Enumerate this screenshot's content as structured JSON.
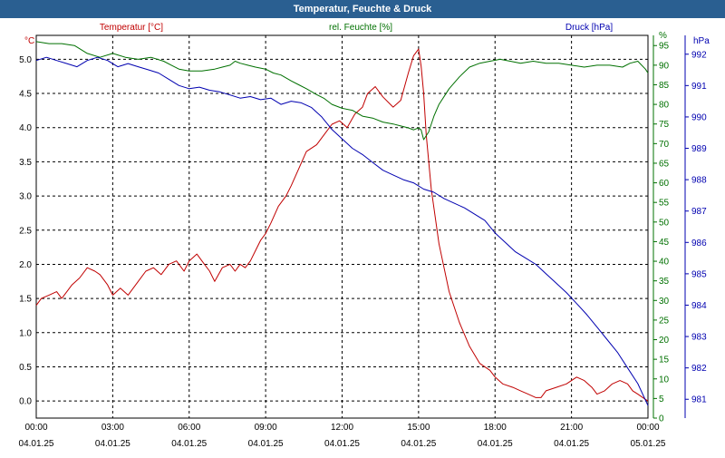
{
  "window": {
    "title": "Temperatur, Feuchte & Druck"
  },
  "colors": {
    "temp": "#c00000",
    "hum": "#007000",
    "pres": "#0000b0",
    "title_bg": "#2a5f91",
    "grid": "#000000"
  },
  "chart_data": {
    "type": "line",
    "title": "Temperatur, Feuchte & Druck",
    "grid": true,
    "x_tick_labels": [
      {
        "time": "00:00",
        "date": "04.01.25"
      },
      {
        "time": "03:00",
        "date": "04.01.25"
      },
      {
        "time": "06:00",
        "date": "04.01.25"
      },
      {
        "time": "09:00",
        "date": "04.01.25"
      },
      {
        "time": "12:00",
        "date": "04.01.25"
      },
      {
        "time": "15:00",
        "date": "04.01.25"
      },
      {
        "time": "18:00",
        "date": "04.01.25"
      },
      {
        "time": "21:00",
        "date": "04.01.25"
      },
      {
        "time": "00:00",
        "date": "05.01.25"
      }
    ],
    "x_range_hours": [
      0,
      24
    ],
    "axes": {
      "temp": {
        "label": "Temperatur [°C]",
        "unit": "°C",
        "range": [
          -0.25,
          5.35
        ],
        "ticks": [
          "0.0",
          "0.5",
          "1.0",
          "1.5",
          "2.0",
          "2.5",
          "3.0",
          "3.5",
          "4.0",
          "4.5",
          "5.0"
        ]
      },
      "hum": {
        "label": "rel. Feuchte [%]",
        "unit": "%",
        "range": [
          0,
          97.6
        ],
        "ticks": [
          "0",
          "5",
          "10",
          "15",
          "20",
          "25",
          "30",
          "35",
          "40",
          "45",
          "50",
          "55",
          "60",
          "65",
          "70",
          "75",
          "80",
          "85",
          "90",
          "95"
        ]
      },
      "pres": {
        "label": "Druck [hPa]",
        "unit": "hPa",
        "range": [
          980.4,
          992.6
        ],
        "ticks": [
          "981",
          "982",
          "983",
          "984",
          "985",
          "986",
          "987",
          "988",
          "989",
          "990",
          "991",
          "992"
        ]
      }
    },
    "series": [
      {
        "name": "Temperatur [°C]",
        "axis": "temp",
        "x": [
          0,
          0.2,
          0.5,
          0.8,
          1.0,
          1.2,
          1.4,
          1.7,
          2.0,
          2.3,
          2.5,
          2.8,
          3.0,
          3.3,
          3.6,
          4.0,
          4.3,
          4.6,
          4.9,
          5.2,
          5.5,
          5.8,
          6.0,
          6.3,
          6.5,
          6.8,
          7.0,
          7.3,
          7.6,
          7.8,
          8.0,
          8.2,
          8.4,
          8.6,
          8.8,
          9.0,
          9.2,
          9.5,
          9.8,
          10.0,
          10.3,
          10.6,
          11.0,
          11.3,
          11.6,
          11.9,
          12.2,
          12.5,
          12.8,
          13.0,
          13.3,
          13.6,
          14.0,
          14.3,
          14.6,
          14.8,
          15.0,
          15.1,
          15.2,
          15.3,
          15.5,
          15.8,
          16.2,
          16.6,
          17.0,
          17.4,
          17.8,
          18.0,
          18.3,
          18.7,
          19.0,
          19.3,
          19.6,
          19.8,
          20.0,
          20.4,
          20.8,
          21.2,
          21.5,
          21.8,
          22.0,
          22.3,
          22.6,
          22.9,
          23.2,
          23.4,
          23.6,
          23.8,
          24
        ],
        "y": [
          1.4,
          1.5,
          1.55,
          1.6,
          1.5,
          1.6,
          1.7,
          1.8,
          1.95,
          1.9,
          1.85,
          1.7,
          1.55,
          1.65,
          1.55,
          1.75,
          1.9,
          1.95,
          1.85,
          2.0,
          2.05,
          1.9,
          2.05,
          2.15,
          2.05,
          1.9,
          1.75,
          1.95,
          2.0,
          1.9,
          2.0,
          1.95,
          2.05,
          2.2,
          2.35,
          2.45,
          2.6,
          2.85,
          3.0,
          3.15,
          3.4,
          3.65,
          3.75,
          3.9,
          4.05,
          4.1,
          4.0,
          4.2,
          4.3,
          4.5,
          4.6,
          4.45,
          4.3,
          4.4,
          4.8,
          5.05,
          5.15,
          4.9,
          4.5,
          3.9,
          3.1,
          2.3,
          1.6,
          1.15,
          0.8,
          0.55,
          0.45,
          0.35,
          0.25,
          0.2,
          0.15,
          0.1,
          0.05,
          0.05,
          0.15,
          0.2,
          0.25,
          0.35,
          0.3,
          0.2,
          0.1,
          0.15,
          0.25,
          0.3,
          0.25,
          0.15,
          0.1,
          0.05,
          0.0
        ]
      },
      {
        "name": "rel. Feuchte [%]",
        "axis": "hum",
        "x": [
          0,
          0.5,
          1.0,
          1.5,
          2.0,
          2.5,
          3.0,
          3.5,
          4.0,
          4.5,
          5.0,
          5.3,
          5.6,
          6.0,
          6.5,
          7.0,
          7.3,
          7.6,
          7.8,
          8.0,
          8.3,
          8.6,
          9.0,
          9.3,
          9.6,
          10.0,
          10.3,
          10.6,
          11.0,
          11.3,
          11.6,
          12.0,
          12.4,
          12.8,
          13.2,
          13.6,
          14.0,
          14.3,
          14.6,
          14.8,
          15.0,
          15.1,
          15.2,
          15.4,
          15.6,
          15.8,
          16.2,
          16.6,
          17.0,
          17.4,
          17.8,
          18.2,
          18.6,
          19.0,
          19.5,
          20.0,
          20.5,
          21.0,
          21.5,
          22.0,
          22.5,
          23.0,
          23.3,
          23.6,
          23.9,
          24
        ],
        "y": [
          96,
          95.5,
          95.5,
          95,
          93,
          92,
          93,
          92,
          91.5,
          92,
          91,
          90,
          89,
          88.5,
          88.5,
          89,
          89.5,
          90,
          91,
          90.5,
          90,
          89.5,
          89,
          88,
          87.5,
          86,
          85,
          84,
          82.5,
          81.5,
          80,
          79,
          78.5,
          77,
          76.5,
          75.5,
          75,
          74.5,
          74,
          73.5,
          74,
          73.5,
          71,
          73,
          77,
          80,
          84,
          87,
          89.5,
          90.5,
          91,
          91.5,
          91,
          90.5,
          91,
          90.5,
          90.5,
          90,
          89.5,
          90,
          90,
          89.5,
          90.5,
          91,
          89,
          88
        ]
      },
      {
        "name": "Druck [hPa]",
        "axis": "pres",
        "x": [
          0,
          0.4,
          0.8,
          1.2,
          1.6,
          2.0,
          2.4,
          2.8,
          3.2,
          3.6,
          4.0,
          4.4,
          4.8,
          5.2,
          5.6,
          6.0,
          6.4,
          6.8,
          7.2,
          7.6,
          8.0,
          8.4,
          8.8,
          9.2,
          9.6,
          10.0,
          10.4,
          10.8,
          11.2,
          11.6,
          12.0,
          12.4,
          12.8,
          13.2,
          13.6,
          14.0,
          14.4,
          14.8,
          15.2,
          15.6,
          16.0,
          16.4,
          16.8,
          17.2,
          17.6,
          18.0,
          18.4,
          18.8,
          19.2,
          19.6,
          20.0,
          20.4,
          20.8,
          21.2,
          21.6,
          22.0,
          22.4,
          22.8,
          23.2,
          23.6,
          24
        ],
        "y": [
          991.8,
          991.9,
          991.8,
          991.7,
          991.6,
          991.8,
          991.9,
          991.8,
          991.6,
          991.7,
          991.6,
          991.5,
          991.4,
          991.2,
          991.0,
          990.9,
          990.95,
          990.85,
          990.8,
          990.7,
          990.6,
          990.65,
          990.55,
          990.6,
          990.4,
          990.5,
          990.45,
          990.3,
          990.0,
          989.6,
          989.3,
          989.0,
          988.8,
          988.55,
          988.3,
          988.15,
          988.0,
          987.9,
          987.7,
          987.6,
          987.4,
          987.25,
          987.1,
          986.9,
          986.7,
          986.3,
          986.0,
          985.7,
          985.5,
          985.3,
          985.0,
          984.7,
          984.4,
          984.05,
          983.7,
          983.3,
          982.9,
          982.5,
          982.0,
          981.5,
          980.8
        ]
      }
    ]
  }
}
